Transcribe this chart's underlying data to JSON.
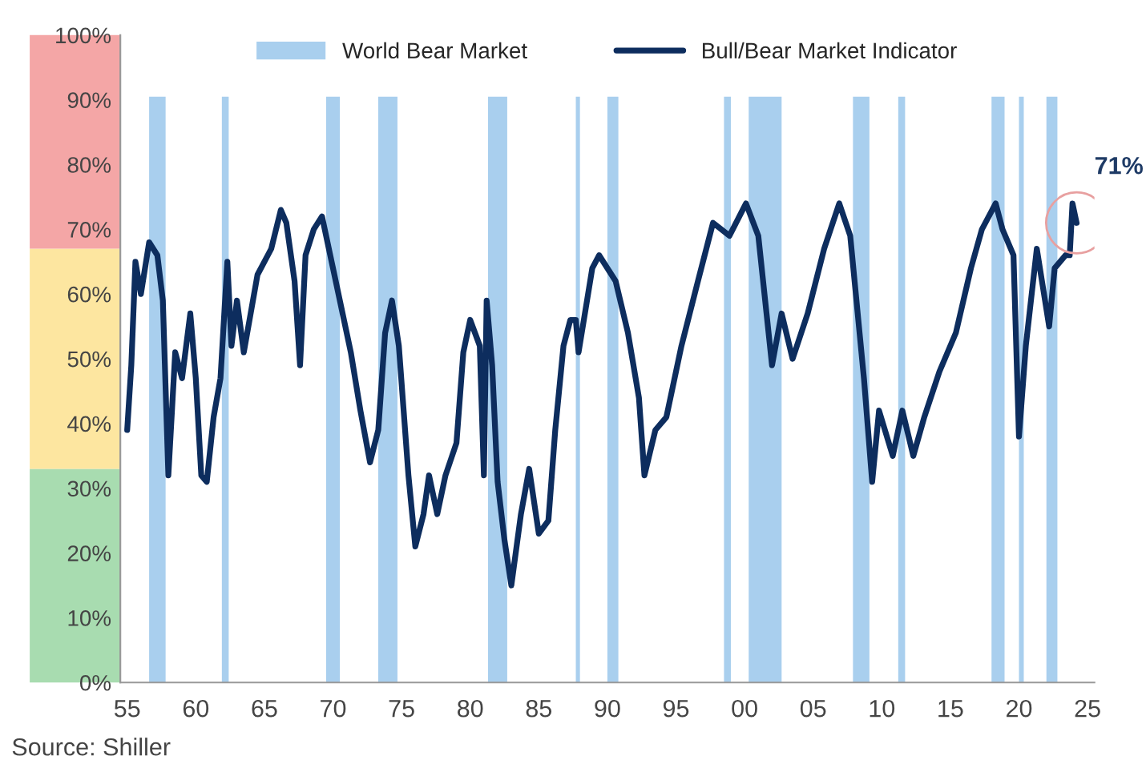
{
  "chart_data": {
    "type": "line",
    "series": [
      {
        "name": "Bull/Bear Market Indicator",
        "color": "#0d2d5e",
        "x": [
          1955.0,
          1955.3,
          1955.6,
          1956.0,
          1956.6,
          1957.2,
          1957.6,
          1958.0,
          1958.5,
          1959.0,
          1959.6,
          1960.0,
          1960.4,
          1960.8,
          1961.3,
          1961.8,
          1962.3,
          1962.6,
          1963.0,
          1963.5,
          1964.0,
          1964.5,
          1965.5,
          1966.2,
          1966.6,
          1967.2,
          1967.6,
          1968.0,
          1968.6,
          1969.2,
          1969.8,
          1970.5,
          1971.3,
          1972.0,
          1972.7,
          1973.3,
          1973.8,
          1974.3,
          1974.8,
          1975.5,
          1976.0,
          1976.6,
          1977.0,
          1977.6,
          1978.2,
          1979.0,
          1979.5,
          1980.0,
          1980.7,
          1981.0,
          1981.2,
          1981.6,
          1982.0,
          1982.5,
          1983.0,
          1983.7,
          1984.3,
          1985.0,
          1985.7,
          1986.2,
          1986.8,
          1987.3,
          1987.7,
          1987.9,
          1988.9,
          1989.4,
          1990.6,
          1991.5,
          1992.3,
          1992.7,
          1993.5,
          1994.3,
          1995.4,
          1996.6,
          1997.7,
          1998.9,
          2000.1,
          2001.0,
          2002.0,
          2002.7,
          2003.5,
          2004.6,
          2005.8,
          2006.9,
          2007.7,
          2008.7,
          2009.3,
          2009.8,
          2010.8,
          2011.5,
          2012.3,
          2013.1,
          2014.2,
          2015.4,
          2016.5,
          2017.3,
          2018.3,
          2018.8,
          2019.6,
          2020.0,
          2020.5,
          2021.3,
          2021.9,
          2022.2,
          2022.6,
          2023.4,
          2023.7,
          2023.9,
          2024.2
        ],
        "values": [
          39,
          49,
          65,
          60,
          68,
          66,
          59,
          32,
          51,
          47,
          57,
          47,
          32,
          31,
          41,
          47,
          65,
          52,
          59,
          51,
          57,
          63,
          67,
          73,
          71,
          62,
          49,
          66,
          70,
          72,
          66,
          59,
          51,
          42,
          34,
          39,
          54,
          59,
          52,
          32,
          21,
          26,
          32,
          26,
          32,
          37,
          51,
          56,
          52,
          32,
          59,
          49,
          31,
          22,
          15,
          26,
          33,
          23,
          25,
          39,
          52,
          56,
          56,
          51,
          64,
          66,
          62,
          54,
          44,
          32,
          39,
          41,
          52,
          62,
          71,
          69,
          74,
          69,
          49,
          57,
          50,
          57,
          67,
          74,
          69,
          47,
          31,
          42,
          35,
          42,
          35,
          41,
          48,
          54,
          64,
          70,
          74,
          70,
          66,
          38,
          52,
          67,
          59,
          55,
          64,
          66,
          66,
          74,
          71
        ]
      }
    ],
    "xlim": [
      1954.5,
      2025.5
    ],
    "xticks": [
      {
        "value": 1955,
        "label": "55"
      },
      {
        "value": 1960,
        "label": "60"
      },
      {
        "value": 1965,
        "label": "65"
      },
      {
        "value": 1970,
        "label": "70"
      },
      {
        "value": 1975,
        "label": "75"
      },
      {
        "value": 1980,
        "label": "80"
      },
      {
        "value": 1985,
        "label": "85"
      },
      {
        "value": 1990,
        "label": "90"
      },
      {
        "value": 1995,
        "label": "95"
      },
      {
        "value": 2000,
        "label": "00"
      },
      {
        "value": 2005,
        "label": "05"
      },
      {
        "value": 2010,
        "label": "10"
      },
      {
        "value": 2015,
        "label": "15"
      },
      {
        "value": 2020,
        "label": "20"
      },
      {
        "value": 2025,
        "label": "25"
      }
    ],
    "ylim": [
      0,
      100
    ],
    "yticks": [
      {
        "value": 0,
        "label": "0%"
      },
      {
        "value": 10,
        "label": "10%"
      },
      {
        "value": 20,
        "label": "20%"
      },
      {
        "value": 30,
        "label": "30%"
      },
      {
        "value": 40,
        "label": "40%"
      },
      {
        "value": 50,
        "label": "50%"
      },
      {
        "value": 60,
        "label": "60%"
      },
      {
        "value": 70,
        "label": "70%"
      },
      {
        "value": 80,
        "label": "80%"
      },
      {
        "value": 90,
        "label": "90%"
      },
      {
        "value": 100,
        "label": "100%"
      }
    ],
    "bands": [
      {
        "axis": "x",
        "from": 1956.6,
        "to": 1957.8,
        "color": "#a9cfee",
        "label": "World Bear Market"
      },
      {
        "axis": "x",
        "from": 1961.9,
        "to": 1962.4,
        "color": "#a9cfee"
      },
      {
        "axis": "x",
        "from": 1969.5,
        "to": 1970.5,
        "color": "#a9cfee"
      },
      {
        "axis": "x",
        "from": 1973.3,
        "to": 1974.7,
        "color": "#a9cfee"
      },
      {
        "axis": "x",
        "from": 1981.3,
        "to": 1982.7,
        "color": "#a9cfee"
      },
      {
        "axis": "x",
        "from": 1987.7,
        "to": 1988.0,
        "color": "#a9cfee"
      },
      {
        "axis": "x",
        "from": 1990.0,
        "to": 1990.8,
        "color": "#a9cfee"
      },
      {
        "axis": "x",
        "from": 1998.5,
        "to": 1999.0,
        "color": "#a9cfee"
      },
      {
        "axis": "x",
        "from": 2000.3,
        "to": 2002.7,
        "color": "#a9cfee"
      },
      {
        "axis": "x",
        "from": 2007.9,
        "to": 2009.1,
        "color": "#a9cfee"
      },
      {
        "axis": "x",
        "from": 2011.2,
        "to": 2011.7,
        "color": "#a9cfee"
      },
      {
        "axis": "x",
        "from": 2018.0,
        "to": 2018.95,
        "color": "#a9cfee"
      },
      {
        "axis": "x",
        "from": 2020.0,
        "to": 2020.35,
        "color": "#a9cfee"
      },
      {
        "axis": "x",
        "from": 2022.0,
        "to": 2022.8,
        "color": "#a9cfee"
      }
    ],
    "annotations": [
      {
        "text": "71%",
        "x": 2024.2,
        "y": 71
      },
      "Source: Shiller"
    ],
    "legend": "top",
    "grid": false,
    "marker": "none",
    "line_style": "solid"
  }
}
